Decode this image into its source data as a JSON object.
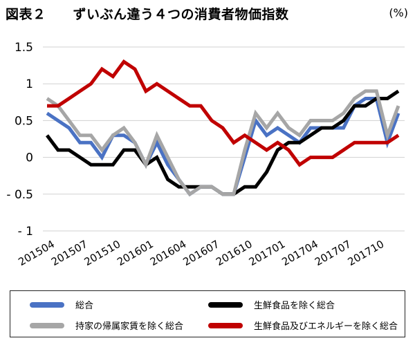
{
  "header": {
    "title": "図表２　　ずいぶん違う４つの消費者物価指数",
    "unit": "(%)"
  },
  "chart_data": {
    "type": "line",
    "title": "図表２　　ずいぶん違う４つの消費者物価指数",
    "ylabel": "(%)",
    "xlabel": "",
    "ylim": [
      -1,
      1.5
    ],
    "yticks": [
      1.5,
      1,
      0.5,
      0,
      -0.5,
      -1
    ],
    "ytick_labels": [
      "1.5",
      "1",
      "0.5",
      "0",
      "- 0.5",
      "- 1"
    ],
    "grid": "horizontal",
    "legend_position": "bottom",
    "x": [
      "201504",
      "201505",
      "201506",
      "201507",
      "201508",
      "201509",
      "201510",
      "201511",
      "201512",
      "201601",
      "201602",
      "201603",
      "201604",
      "201605",
      "201606",
      "201607",
      "201608",
      "201609",
      "201610",
      "201611",
      "201612",
      "201701",
      "201702",
      "201703",
      "201704",
      "201705",
      "201706",
      "201707",
      "201708",
      "201709",
      "201710",
      "201711",
      "201712"
    ],
    "xtick_labels": [
      "201504",
      "201507",
      "201510",
      "201601",
      "201604",
      "201607",
      "201610",
      "201701",
      "201704",
      "201707",
      "201710"
    ],
    "series": [
      {
        "name": "総合",
        "color": "#4a72c4",
        "values": [
          0.6,
          0.5,
          0.4,
          0.2,
          0.2,
          0.0,
          0.3,
          0.3,
          0.2,
          -0.1,
          0.2,
          -0.1,
          -0.3,
          -0.5,
          -0.4,
          -0.4,
          -0.5,
          -0.5,
          0.0,
          0.5,
          0.3,
          0.4,
          0.3,
          0.2,
          0.4,
          0.4,
          0.4,
          0.4,
          0.7,
          0.8,
          0.8,
          0.2,
          0.6
        ]
      },
      {
        "name": "生鮮食品を除く総合",
        "color": "#000000",
        "values": [
          0.3,
          0.1,
          0.1,
          0.0,
          -0.1,
          -0.1,
          -0.1,
          0.1,
          0.1,
          -0.1,
          0.0,
          -0.3,
          -0.4,
          -0.4,
          -0.4,
          -0.4,
          -0.5,
          -0.5,
          -0.4,
          -0.4,
          -0.2,
          0.1,
          0.2,
          0.2,
          0.3,
          0.4,
          0.4,
          0.5,
          0.7,
          0.7,
          0.8,
          0.8,
          0.9
        ]
      },
      {
        "name": "持家の帰属家賃を除く総合",
        "color": "#a6a6a6",
        "values": [
          0.8,
          0.7,
          0.5,
          0.3,
          0.3,
          0.1,
          0.3,
          0.4,
          0.2,
          -0.1,
          0.3,
          0.0,
          -0.3,
          -0.5,
          -0.4,
          -0.4,
          -0.5,
          -0.5,
          0.1,
          0.6,
          0.4,
          0.6,
          0.4,
          0.3,
          0.5,
          0.5,
          0.5,
          0.6,
          0.8,
          0.9,
          0.9,
          0.3,
          0.7
        ]
      },
      {
        "name": "生鮮食品及びエネルギーを除く総合",
        "color": "#c00000",
        "values": [
          0.7,
          0.7,
          0.8,
          0.9,
          1.0,
          1.2,
          1.1,
          1.3,
          1.2,
          0.9,
          1.0,
          0.9,
          0.8,
          0.7,
          0.7,
          0.5,
          0.4,
          0.2,
          0.3,
          0.2,
          0.1,
          0.2,
          0.1,
          -0.1,
          0.0,
          0.0,
          0.0,
          0.1,
          0.2,
          0.2,
          0.2,
          0.2,
          0.3
        ]
      }
    ]
  },
  "legend": {
    "items": [
      {
        "label": "総合",
        "color": "#4a72c4"
      },
      {
        "label": "生鮮食品を除く総合",
        "color": "#000000"
      },
      {
        "label": "持家の帰属家賃を除く総合",
        "color": "#a6a6a6"
      },
      {
        "label": "生鮮食品及びエネルギーを除く総合",
        "color": "#c00000"
      }
    ]
  }
}
